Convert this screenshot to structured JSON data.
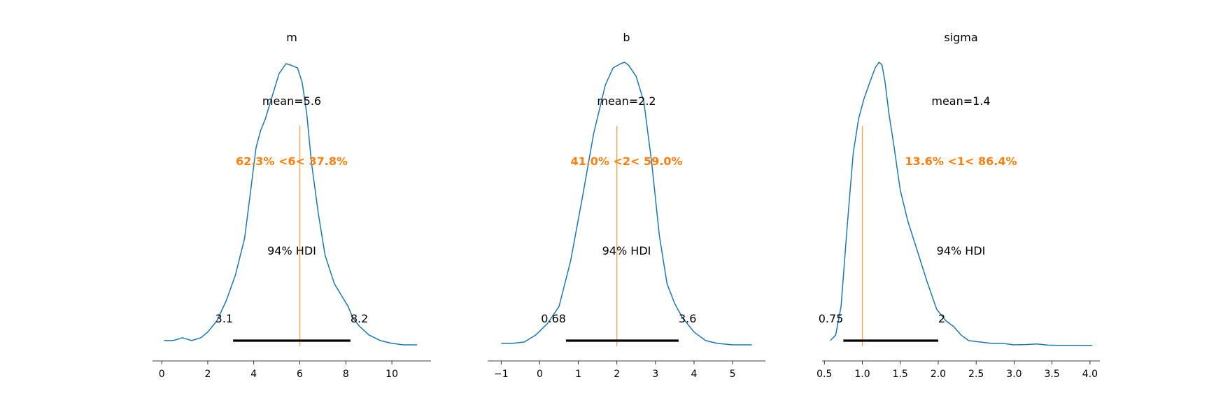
{
  "colors": {
    "density": "#1f77b4",
    "reference": "#ff7f0e",
    "hdi_bar": "#000000",
    "axis": "#000000"
  },
  "chart_data": [
    {
      "type": "area",
      "title": "m",
      "xlim": [
        -0.4,
        11.7
      ],
      "ticks": [
        0,
        2,
        4,
        6,
        8,
        10
      ],
      "tick_labels": [
        "0",
        "2",
        "4",
        "6",
        "8",
        "10"
      ],
      "density": {
        "x": [
          0.1,
          0.5,
          0.9,
          1.3,
          1.7,
          2.0,
          2.4,
          2.8,
          3.2,
          3.6,
          3.9,
          4.1,
          4.3,
          4.5,
          4.8,
          5.1,
          5.4,
          5.6,
          5.9,
          6.1,
          6.3,
          6.5,
          6.8,
          7.1,
          7.5,
          7.8,
          8.1,
          8.3,
          8.6,
          9.0,
          9.5,
          10.0,
          10.5,
          11.1
        ],
        "y": [
          0.02,
          0.02,
          0.03,
          0.02,
          0.03,
          0.05,
          0.09,
          0.16,
          0.25,
          0.38,
          0.57,
          0.7,
          0.76,
          0.8,
          0.88,
          0.96,
          0.995,
          0.99,
          0.98,
          0.93,
          0.82,
          0.65,
          0.47,
          0.32,
          0.22,
          0.18,
          0.14,
          0.1,
          0.07,
          0.04,
          0.02,
          0.01,
          0.005,
          0.005
        ]
      },
      "mean_label": "mean=5.6",
      "reference": {
        "value": 6,
        "label": "62.3% <6< 37.8%"
      },
      "hdi": {
        "label": "94% HDI",
        "low": 3.1,
        "high": 8.2,
        "low_label": "3.1",
        "high_label": "8.2"
      }
    },
    {
      "type": "area",
      "title": "b",
      "xlim": [
        -1.35,
        5.85
      ],
      "ticks": [
        -1,
        0,
        1,
        2,
        3,
        4,
        5
      ],
      "tick_labels": [
        "−1",
        "0",
        "1",
        "2",
        "3",
        "4",
        "5"
      ],
      "density": {
        "x": [
          -1.0,
          -0.7,
          -0.4,
          -0.1,
          0.2,
          0.5,
          0.8,
          1.1,
          1.4,
          1.7,
          1.9,
          2.1,
          2.2,
          2.3,
          2.5,
          2.7,
          2.9,
          3.1,
          3.3,
          3.5,
          3.7,
          4.0,
          4.3,
          4.6,
          5.0,
          5.5
        ],
        "y": [
          0.01,
          0.01,
          0.015,
          0.04,
          0.08,
          0.14,
          0.3,
          0.52,
          0.75,
          0.92,
          0.98,
          0.995,
          1.0,
          0.99,
          0.95,
          0.86,
          0.65,
          0.39,
          0.22,
          0.15,
          0.1,
          0.05,
          0.02,
          0.01,
          0.005,
          0.005
        ]
      },
      "mean_label": "mean=2.2",
      "reference": {
        "value": 2,
        "label": "41.0% <2< 59.0%"
      },
      "hdi": {
        "label": "94% HDI",
        "low": 0.68,
        "high": 3.6,
        "low_label": "0.68",
        "high_label": "3.6"
      }
    },
    {
      "type": "area",
      "title": "sigma",
      "xlim": [
        0.47,
        4.13
      ],
      "ticks": [
        0.5,
        1.0,
        1.5,
        2.0,
        2.5,
        3.0,
        3.5,
        4.0
      ],
      "tick_labels": [
        "0.5",
        "1.0",
        "1.5",
        "2.0",
        "2.5",
        "3.0",
        "3.5",
        "4.0"
      ],
      "density": {
        "x": [
          0.58,
          0.65,
          0.72,
          0.8,
          0.88,
          0.95,
          1.02,
          1.1,
          1.17,
          1.22,
          1.26,
          1.3,
          1.35,
          1.42,
          1.5,
          1.6,
          1.72,
          1.85,
          1.98,
          2.1,
          2.2,
          2.3,
          2.4,
          2.55,
          2.7,
          2.85,
          3.0,
          3.15,
          3.3,
          3.45,
          3.6,
          3.8,
          4.03
        ],
        "y": [
          0.02,
          0.04,
          0.14,
          0.42,
          0.68,
          0.8,
          0.87,
          0.93,
          0.98,
          1.0,
          0.99,
          0.93,
          0.82,
          0.7,
          0.55,
          0.44,
          0.34,
          0.23,
          0.13,
          0.09,
          0.07,
          0.04,
          0.02,
          0.015,
          0.01,
          0.01,
          0.005,
          0.006,
          0.008,
          0.004,
          0.003,
          0.003,
          0.003
        ]
      },
      "mean_label": "mean=1.4",
      "reference": {
        "value": 1,
        "label": "13.6% <1< 86.4%"
      },
      "hdi": {
        "label": "94% HDI",
        "low": 0.75,
        "high": 2.0,
        "low_label": "0.75",
        "high_label": "2"
      }
    }
  ]
}
